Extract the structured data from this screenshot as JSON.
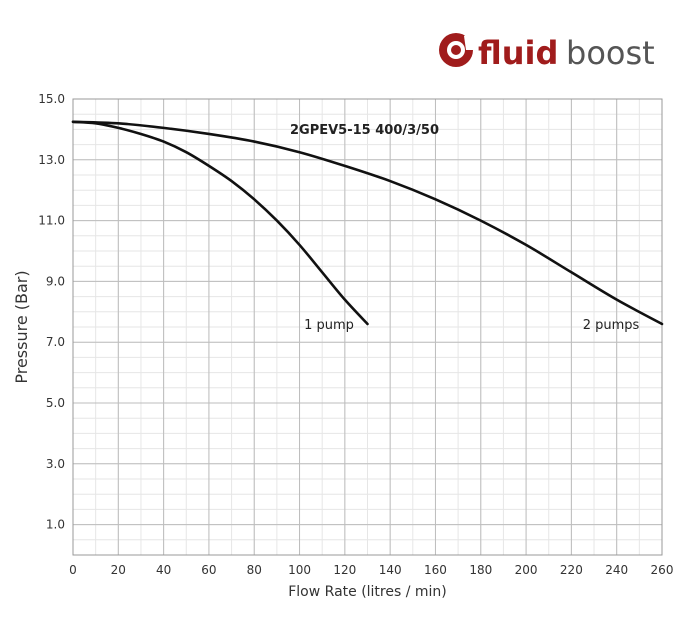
{
  "logo": {
    "word_bold": "fluid",
    "word_light": "boost",
    "accent": "#a01c1c",
    "gray": "#555555"
  },
  "chart_data": {
    "type": "line",
    "title": "2GPEV5-15 400/3/50",
    "xlabel": "Flow Rate (litres / min)",
    "ylabel": "Pressure (Bar)",
    "xlim": [
      0,
      260
    ],
    "ylim": [
      0,
      15
    ],
    "x_ticks": [
      0,
      20,
      40,
      60,
      80,
      100,
      120,
      140,
      160,
      180,
      200,
      220,
      240,
      260
    ],
    "y_ticks": [
      1.0,
      3.0,
      5.0,
      7.0,
      9.0,
      11.0,
      13.0,
      15.0
    ],
    "grid": true,
    "series": [
      {
        "name": "1 pump",
        "label_at": [
          102,
          7.6
        ],
        "x": [
          0,
          10,
          20,
          30,
          40,
          50,
          60,
          70,
          80,
          90,
          100,
          110,
          120,
          130
        ],
        "y": [
          14.25,
          14.2,
          14.05,
          13.85,
          13.6,
          13.25,
          12.8,
          12.3,
          11.7,
          11.0,
          10.2,
          9.3,
          8.4,
          7.6
        ]
      },
      {
        "name": "2 pumps",
        "label_at": [
          225,
          7.6
        ],
        "x": [
          0,
          20,
          40,
          60,
          80,
          100,
          120,
          140,
          160,
          180,
          200,
          220,
          240,
          260
        ],
        "y": [
          14.25,
          14.2,
          14.05,
          13.85,
          13.6,
          13.25,
          12.8,
          12.3,
          11.7,
          11.0,
          10.2,
          9.3,
          8.4,
          7.6
        ]
      }
    ]
  }
}
